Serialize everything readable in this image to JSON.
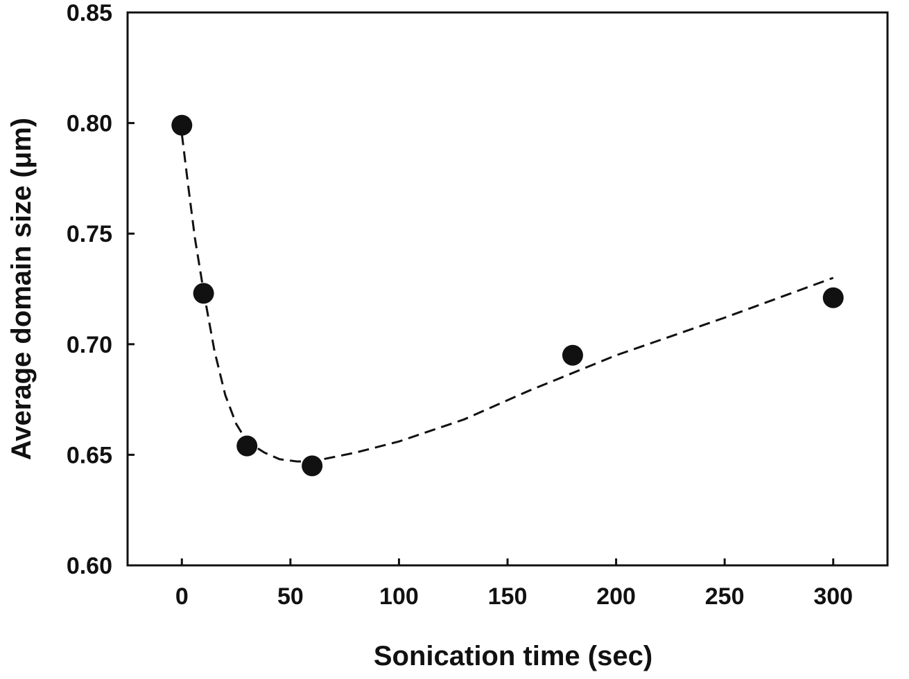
{
  "chart_data": {
    "type": "scatter",
    "xlabel": "Sonication time (sec)",
    "ylabel": "Average domain size (μm)",
    "xlim": [
      -25,
      325
    ],
    "ylim": [
      0.6,
      0.85
    ],
    "x_ticks": [
      0,
      50,
      100,
      150,
      200,
      250,
      300
    ],
    "x_tick_labels": [
      "0",
      "50",
      "100",
      "150",
      "200",
      "250",
      "300"
    ],
    "y_ticks": [
      0.6,
      0.65,
      0.7,
      0.75,
      0.8,
      0.85
    ],
    "y_tick_labels": [
      "0.60",
      "0.65",
      "0.70",
      "0.75",
      "0.80",
      "0.85"
    ],
    "grid": false,
    "series": [
      {
        "points": [
          {
            "x": 0,
            "y": 0.799
          },
          {
            "x": 10,
            "y": 0.723
          },
          {
            "x": 30,
            "y": 0.654
          },
          {
            "x": 60,
            "y": 0.645
          },
          {
            "x": 180,
            "y": 0.695
          },
          {
            "x": 300,
            "y": 0.721
          }
        ],
        "marker": "filled-circle",
        "color": "#111111"
      }
    ],
    "fit_line": {
      "style": "dashed",
      "color": "#111111",
      "points": [
        {
          "x": 0,
          "y": 0.795
        },
        {
          "x": 3,
          "y": 0.771
        },
        {
          "x": 6,
          "y": 0.748
        },
        {
          "x": 10,
          "y": 0.724
        },
        {
          "x": 15,
          "y": 0.697
        },
        {
          "x": 20,
          "y": 0.677
        },
        {
          "x": 25,
          "y": 0.664
        },
        {
          "x": 30,
          "y": 0.656
        },
        {
          "x": 38,
          "y": 0.651
        },
        {
          "x": 45,
          "y": 0.648
        },
        {
          "x": 53,
          "y": 0.647
        },
        {
          "x": 60,
          "y": 0.647
        },
        {
          "x": 80,
          "y": 0.651
        },
        {
          "x": 100,
          "y": 0.656
        },
        {
          "x": 130,
          "y": 0.666
        },
        {
          "x": 160,
          "y": 0.679
        },
        {
          "x": 200,
          "y": 0.695
        },
        {
          "x": 250,
          "y": 0.712
        },
        {
          "x": 300,
          "y": 0.73
        }
      ]
    }
  }
}
